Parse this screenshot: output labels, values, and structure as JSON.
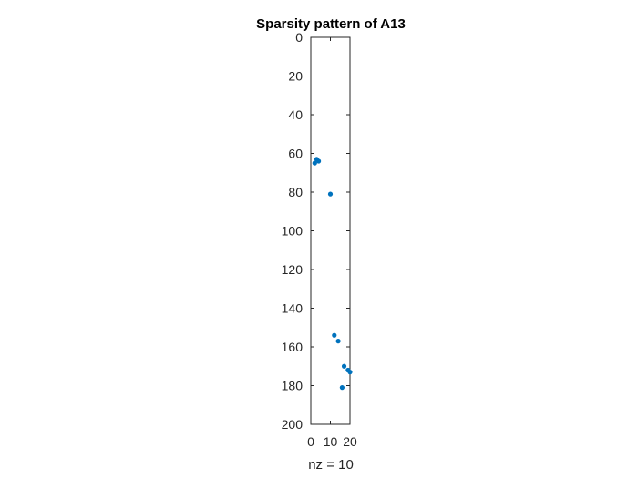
{
  "chart_data": {
    "type": "scatter",
    "title": "Sparsity pattern of A13",
    "xlabel": "nz = 10",
    "ylabel": "",
    "xlim": [
      0,
      20
    ],
    "ylim": [
      0,
      200
    ],
    "y_reversed": true,
    "xticks": [
      0,
      10,
      20
    ],
    "yticks": [
      0,
      20,
      40,
      60,
      80,
      100,
      120,
      140,
      160,
      180,
      200
    ],
    "grid": false,
    "marker_color": "#0072BD",
    "points": [
      {
        "x": 3,
        "y": 63
      },
      {
        "x": 2,
        "y": 65
      },
      {
        "x": 4,
        "y": 64
      },
      {
        "x": 10,
        "y": 81
      },
      {
        "x": 12,
        "y": 154
      },
      {
        "x": 14,
        "y": 157
      },
      {
        "x": 17,
        "y": 170
      },
      {
        "x": 19,
        "y": 172
      },
      {
        "x": 20,
        "y": 173
      },
      {
        "x": 16,
        "y": 181
      }
    ]
  }
}
